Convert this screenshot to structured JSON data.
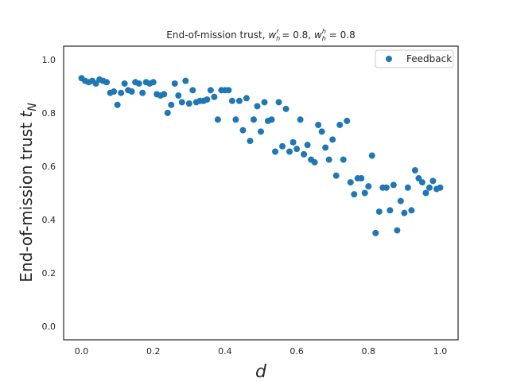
{
  "chart_data": {
    "type": "scatter",
    "title": "End-of-mission trust, w_h^r = 0.8, w_h^h = 0.8",
    "title_parts": {
      "prefix": "End-of-mission trust, ",
      "v1": "w",
      "v1_sub": "h",
      "v1_sup": "r",
      "mid": " = 0.8, ",
      "v2": "w",
      "v2_sub": "h",
      "v2_sup": "h",
      "suffix": " = 0.8"
    },
    "xlabel": "d",
    "ylabel": "End-of-mission trust",
    "ylabel_var": "t",
    "ylabel_sub": "N",
    "xlim": [
      -0.05,
      1.05
    ],
    "ylim": [
      -0.05,
      1.05
    ],
    "xticks": [
      0.0,
      0.2,
      0.4,
      0.6,
      0.8,
      1.0
    ],
    "xtick_labels": [
      "0.0",
      "0.2",
      "0.4",
      "0.6",
      "0.8",
      "1.0"
    ],
    "yticks": [
      0.0,
      0.2,
      0.4,
      0.6,
      0.8,
      1.0
    ],
    "ytick_labels": [
      "0.0",
      "0.2",
      "0.4",
      "0.6",
      "0.8",
      "1.0"
    ],
    "grid": false,
    "legend_position": "top-right",
    "series": [
      {
        "name": "Feedback",
        "color": "#1f77b4",
        "x": [
          0.0,
          0.01,
          0.02,
          0.03,
          0.04,
          0.05,
          0.06,
          0.07,
          0.08,
          0.09,
          0.1,
          0.11,
          0.12,
          0.13,
          0.14,
          0.15,
          0.16,
          0.17,
          0.18,
          0.19,
          0.2,
          0.21,
          0.22,
          0.23,
          0.24,
          0.25,
          0.26,
          0.27,
          0.28,
          0.29,
          0.3,
          0.31,
          0.32,
          0.33,
          0.34,
          0.35,
          0.36,
          0.37,
          0.38,
          0.39,
          0.4,
          0.41,
          0.42,
          0.43,
          0.44,
          0.45,
          0.46,
          0.47,
          0.48,
          0.49,
          0.5,
          0.51,
          0.52,
          0.53,
          0.54,
          0.55,
          0.56,
          0.57,
          0.58,
          0.59,
          0.6,
          0.61,
          0.62,
          0.63,
          0.64,
          0.65,
          0.66,
          0.67,
          0.68,
          0.69,
          0.7,
          0.71,
          0.72,
          0.73,
          0.74,
          0.75,
          0.76,
          0.77,
          0.78,
          0.79,
          0.8,
          0.81,
          0.82,
          0.83,
          0.84,
          0.85,
          0.86,
          0.87,
          0.88,
          0.89,
          0.9,
          0.91,
          0.92,
          0.93,
          0.94,
          0.95,
          0.96,
          0.97,
          0.98,
          0.99,
          1.0
        ],
        "y": [
          0.93,
          0.92,
          0.915,
          0.92,
          0.91,
          0.925,
          0.92,
          0.915,
          0.875,
          0.88,
          0.83,
          0.875,
          0.91,
          0.885,
          0.88,
          0.915,
          0.91,
          0.875,
          0.915,
          0.91,
          0.915,
          0.87,
          0.865,
          0.87,
          0.8,
          0.83,
          0.91,
          0.865,
          0.84,
          0.92,
          0.835,
          0.885,
          0.84,
          0.845,
          0.845,
          0.85,
          0.885,
          0.86,
          0.775,
          0.885,
          0.885,
          0.885,
          0.845,
          0.775,
          0.845,
          0.735,
          0.855,
          0.695,
          0.775,
          0.825,
          0.73,
          0.84,
          0.77,
          0.775,
          0.655,
          0.84,
          0.675,
          0.815,
          0.655,
          0.69,
          0.665,
          0.775,
          0.645,
          0.68,
          0.625,
          0.615,
          0.755,
          0.73,
          0.67,
          0.625,
          0.7,
          0.565,
          0.755,
          0.625,
          0.77,
          0.54,
          0.495,
          0.555,
          0.555,
          0.5,
          0.525,
          0.64,
          0.35,
          0.43,
          0.52,
          0.52,
          0.435,
          0.53,
          0.36,
          0.47,
          0.425,
          0.52,
          0.435,
          0.585,
          0.555,
          0.54,
          0.5,
          0.52,
          0.545,
          0.515,
          0.52
        ]
      }
    ]
  }
}
